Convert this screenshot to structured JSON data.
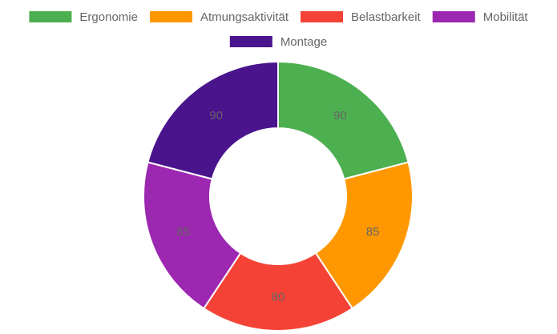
{
  "chart_data": {
    "type": "doughnut",
    "categories": [
      "Ergonomie",
      "Atmungsaktivität",
      "Belastbarkeit",
      "Mobilität",
      "Montage"
    ],
    "values": [
      90,
      85,
      80,
      85,
      90
    ],
    "colors": [
      "#4caf50",
      "#ff9800",
      "#f44336",
      "#9c27b0",
      "#4a148c"
    ],
    "legend": "top"
  }
}
